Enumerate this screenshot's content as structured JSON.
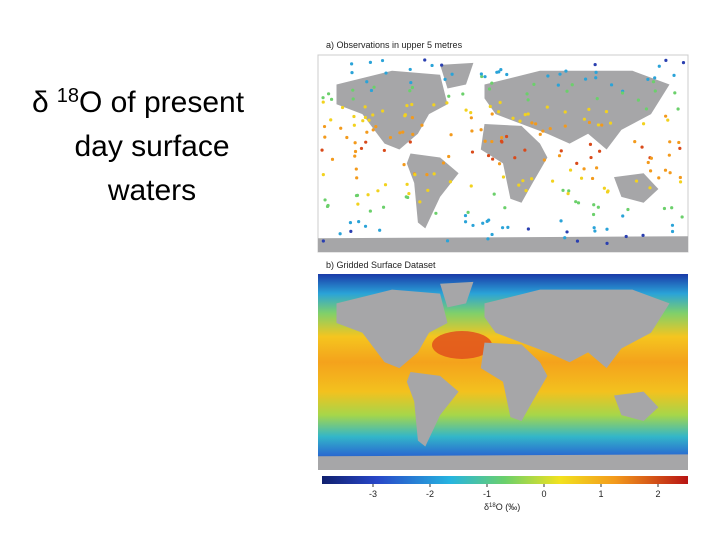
{
  "title": {
    "prefix": "δ",
    "superscript": "18",
    "lines": [
      "O of present",
      "day surface",
      "waters"
    ]
  },
  "panels": [
    {
      "label": "a) Observations in upper 5 metres"
    },
    {
      "label": "b) Gridded Surface Dataset"
    }
  ],
  "colorbar": {
    "ticks": [
      -3,
      -2,
      -1,
      0,
      1,
      2
    ],
    "label": {
      "prefix": "δ",
      "superscript": "18",
      "suffix": "O (‰)"
    }
  }
}
